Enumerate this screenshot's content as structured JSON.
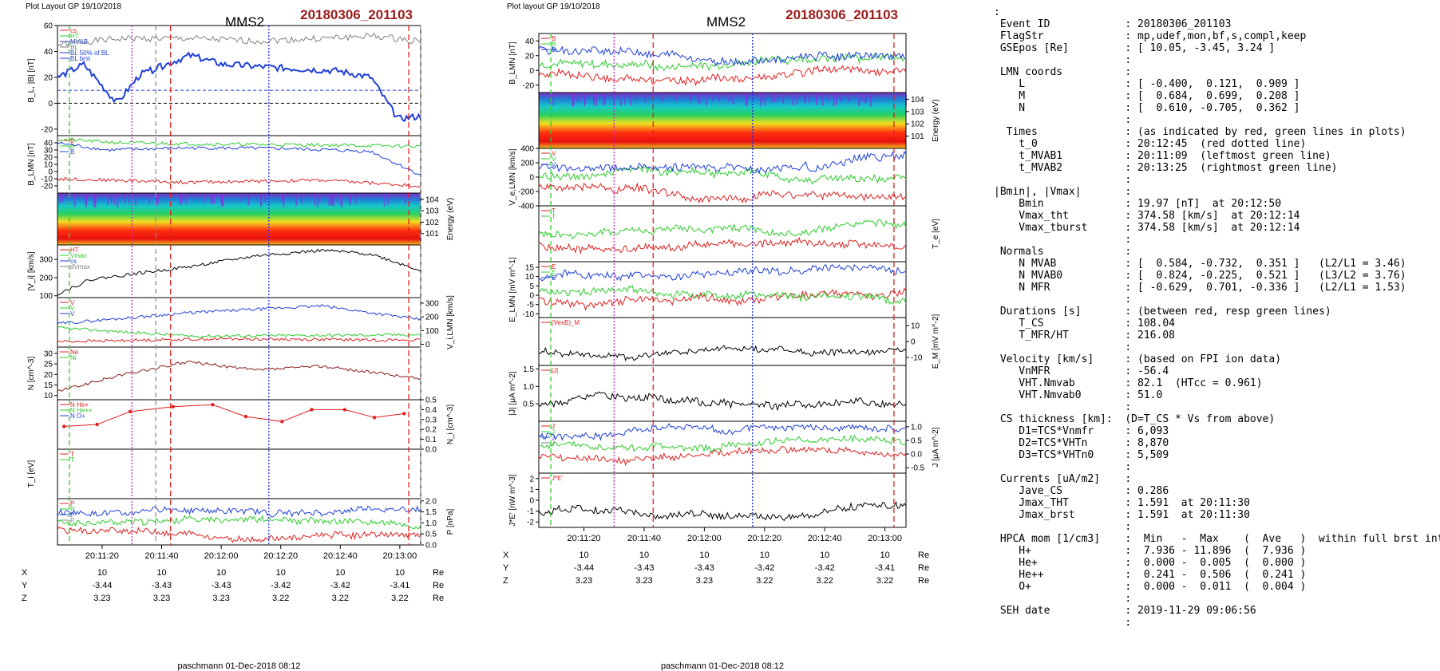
{
  "left_figure": {
    "header": "Plot Layout GP 19/10/2018",
    "spacecraft": "MMS2",
    "event": "20180306_201103",
    "footer": "paschmann 01-Dec-2018 08:12",
    "time_ticks": [
      "20:11:20",
      "20:11:40",
      "20:12:00",
      "20:12:20",
      "20:12:40",
      "20:13:00"
    ],
    "position_rows": [
      {
        "name": "X",
        "values": [
          "10",
          "10",
          "10",
          "10",
          "10",
          "10"
        ],
        "unit": "Re"
      },
      {
        "name": "Y",
        "values": [
          "-3.44",
          "-3.43",
          "-3.43",
          "-3.42",
          "-3.42",
          "-3.41"
        ],
        "unit": "Re"
      },
      {
        "name": "Z",
        "values": [
          "3.23",
          "3.23",
          "3.23",
          "3.22",
          "3.22",
          "3.22"
        ],
        "unit": "Re"
      }
    ],
    "markers": {
      "red_dashed": [
        "20:11:43",
        "20:13:03"
      ],
      "magenta_dotted": [
        "20:11:30"
      ],
      "blue_dotted": [
        "20:12:16"
      ],
      "green_dashed": [
        "20:11:09"
      ],
      "gray_dashed": [
        "20:11:38",
        "20:13:07"
      ]
    }
  },
  "right_figure": {
    "header": "Plot layout GP 19/10/2018",
    "spacecraft": "MMS2",
    "event": "20180306_201103",
    "footer": "paschmann 01-Dec-2018 08:12",
    "time_ticks": [
      "20:11:20",
      "20:11:40",
      "20:12:00",
      "20:12:20",
      "20:12:40",
      "20:13:00"
    ],
    "position_rows": [
      {
        "name": "X",
        "values": [
          "10",
          "10",
          "10",
          "10",
          "10",
          "10"
        ],
        "unit": "Re"
      },
      {
        "name": "Y",
        "values": [
          "-3.44",
          "-3.43",
          "-3.43",
          "-3.42",
          "-3.42",
          "-3.41"
        ],
        "unit": "Re"
      },
      {
        "name": "Z",
        "values": [
          "3.23",
          "3.23",
          "3.23",
          "3.22",
          "3.22",
          "3.22"
        ],
        "unit": "Re"
      }
    ],
    "markers": {
      "red_dashed": [
        "20:11:43",
        "20:13:03"
      ],
      "magenta_dotted": [
        "20:11:30"
      ],
      "blue_dotted": [
        "20:12:16"
      ],
      "green_dashed": [
        "20:11:09"
      ]
    }
  },
  "chart_data": [
    {
      "type": "line",
      "figure": "left",
      "panel": 1,
      "ylabel": "B_L, |B| [nT]",
      "ylim": [
        -25,
        60
      ],
      "y_ticks": [
        "60",
        "40",
        "20",
        "0",
        "-20"
      ],
      "legend": [
        "cs",
        "HT",
        "MVAB",
        "BL",
        "BL 50% of BL",
        "BL brst"
      ],
      "series": [
        {
          "name": "|B|",
          "color": "#808080",
          "approx": [
            [
              0,
              45
            ],
            [
              10,
              48
            ],
            [
              20,
              50
            ],
            [
              40,
              50
            ],
            [
              60,
              48
            ],
            [
              80,
              50
            ],
            [
              95,
              52
            ],
            [
              110,
              48
            ]
          ]
        },
        {
          "name": "BL",
          "color": "#1f3fd8",
          "approx": [
            [
              0,
              20
            ],
            [
              8,
              30
            ],
            [
              18,
              0
            ],
            [
              25,
              22
            ],
            [
              40,
              37
            ],
            [
              50,
              30
            ],
            [
              70,
              27
            ],
            [
              85,
              25
            ],
            [
              95,
              20
            ],
            [
              103,
              -12
            ],
            [
              110,
              -10
            ]
          ]
        }
      ],
      "ref_lines": [
        {
          "y": 10,
          "color": "#1f3fd8"
        },
        {
          "y": 0,
          "color": "#000"
        }
      ]
    },
    {
      "type": "line",
      "figure": "left",
      "panel": 2,
      "ylabel": "B_LMN [nT]",
      "ylim": [
        -30,
        50
      ],
      "y_ticks": [
        "40",
        "30",
        "20",
        "10",
        "0",
        "-10",
        "-20"
      ],
      "legend": [
        "B",
        "B",
        "B"
      ],
      "series": [
        {
          "name": "L",
          "color": "#1f3fd8",
          "approx": [
            [
              0,
              40
            ],
            [
              15,
              30
            ],
            [
              40,
              33
            ],
            [
              70,
              32
            ],
            [
              95,
              28
            ],
            [
              110,
              -5
            ]
          ]
        },
        {
          "name": "M",
          "color": "#2ecc2e",
          "approx": [
            [
              0,
              45
            ],
            [
              20,
              40
            ],
            [
              50,
              38
            ],
            [
              80,
              37
            ],
            [
              110,
              35
            ]
          ]
        },
        {
          "name": "N",
          "color": "#e02020",
          "approx": [
            [
              0,
              -10
            ],
            [
              40,
              -15
            ],
            [
              80,
              -12
            ],
            [
              110,
              -20
            ]
          ]
        }
      ]
    },
    {
      "type": "heatmap",
      "figure": "left",
      "panel": 3,
      "ylabel": "Energy (eV)",
      "y_ticks": [
        "10^4",
        "10^3",
        "10^2",
        "10^1"
      ]
    },
    {
      "type": "line",
      "figure": "left",
      "panel": 4,
      "ylabel": "|V_i| [km/s]",
      "ylim": [
        90,
        380
      ],
      "y_ticks": [
        "300",
        "200",
        "100"
      ],
      "legend": [
        "HT",
        "Vmax",
        "cs",
        "dVmax"
      ],
      "series": [
        {
          "name": "|Vi|",
          "color": "#000",
          "approx": [
            [
              0,
              110
            ],
            [
              10,
              190
            ],
            [
              40,
              260
            ],
            [
              60,
              320
            ],
            [
              80,
              350
            ],
            [
              95,
              330
            ],
            [
              110,
              240
            ]
          ]
        }
      ]
    },
    {
      "type": "line",
      "figure": "left",
      "panel": 5,
      "ylabel": "V_i,LMN [km/s]",
      "ylim": [
        -20,
        340
      ],
      "y_ticks": [
        "300",
        "200",
        "100",
        "0"
      ],
      "legend": [
        "V",
        "V",
        "V"
      ],
      "series": [
        {
          "name": "L",
          "color": "#1f3fd8",
          "approx": [
            [
              0,
              150
            ],
            [
              40,
              230
            ],
            [
              80,
              280
            ],
            [
              110,
              180
            ]
          ]
        },
        {
          "name": "M",
          "color": "#2ecc2e",
          "approx": [
            [
              0,
              120
            ],
            [
              40,
              60
            ],
            [
              110,
              70
            ]
          ]
        },
        {
          "name": "N",
          "color": "#e02020",
          "approx": [
            [
              0,
              20
            ],
            [
              50,
              40
            ],
            [
              110,
              30
            ]
          ]
        }
      ]
    },
    {
      "type": "line",
      "figure": "left",
      "panel": 6,
      "ylabel": "N [cm^-3]",
      "ylim": [
        8,
        33
      ],
      "y_ticks": [
        "30",
        "25",
        "20",
        "15",
        "10"
      ],
      "legend": [
        "Ne",
        "Ni"
      ],
      "series": [
        {
          "name": "Ne",
          "color": "#8b1c1c",
          "approx": [
            [
              0,
              12
            ],
            [
              20,
              20
            ],
            [
              40,
              26
            ],
            [
              60,
              22
            ],
            [
              80,
              24
            ],
            [
              110,
              18
            ]
          ]
        }
      ]
    },
    {
      "type": "line",
      "figure": "left",
      "panel": 7,
      "ylabel": "N_i [cm^-3]",
      "ylim": [
        0,
        0.5
      ],
      "y_ticks": [
        "0.5",
        "0.4",
        "0.3",
        "0.2",
        "0.1",
        "0.0"
      ],
      "legend": [
        "N He+",
        "N He++",
        "N O+"
      ],
      "series": [
        {
          "name": "He++",
          "color": "#e02020",
          "points": [
            [
              2,
              0.23
            ],
            [
              12,
              0.25
            ],
            [
              22,
              0.38
            ],
            [
              35,
              0.43
            ],
            [
              47,
              0.45
            ],
            [
              57,
              0.33
            ],
            [
              68,
              0.28
            ],
            [
              77,
              0.4
            ],
            [
              87,
              0.4
            ],
            [
              96,
              0.32
            ],
            [
              105,
              0.36
            ]
          ]
        }
      ]
    },
    {
      "type": "line",
      "figure": "left",
      "panel": 8,
      "ylabel": "T_i [eV]",
      "legend": [
        "T",
        "T"
      ],
      "series": [
        {
          "name": "T_par",
          "color": "#e02020"
        },
        {
          "name": "T_perp",
          "color": "#000"
        }
      ]
    },
    {
      "type": "line",
      "figure": "left",
      "panel": 9,
      "ylabel": "P [nPa]",
      "ylim": [
        0,
        2.1
      ],
      "y_ticks": [
        "2.0",
        "1.5",
        "1.0",
        "0.5",
        "0.0"
      ],
      "legend": [
        "P",
        "P",
        "P",
        "P"
      ]
    },
    {
      "type": "line",
      "figure": "right",
      "panel": 1,
      "ylabel": "B_LMN [nT]",
      "ylim": [
        -30,
        50
      ],
      "y_ticks": [
        "40",
        "20",
        "0",
        "-20"
      ],
      "legend": [
        "B",
        "B",
        "B"
      ]
    },
    {
      "type": "heatmap",
      "figure": "right",
      "panel": 2,
      "ylabel": "Energy (eV)",
      "y_ticks": [
        "10^4",
        "10^3",
        "10^2",
        "10^1"
      ]
    },
    {
      "type": "line",
      "figure": "right",
      "panel": 3,
      "ylabel": "V_e,LMN [km/s]",
      "ylim": [
        -400,
        400
      ],
      "y_ticks": [
        "400",
        "200",
        "0",
        "-200",
        "-400"
      ],
      "legend": [
        "V",
        "V",
        "V"
      ]
    },
    {
      "type": "line",
      "figure": "right",
      "panel": 4,
      "ylabel": "T_e [eV]",
      "legend": [
        "T",
        "T"
      ]
    },
    {
      "type": "line",
      "figure": "right",
      "panel": 5,
      "ylabel": "E_LMN [mV m^-1]",
      "ylim": [
        -12,
        18
      ],
      "y_ticks": [
        "15",
        "10",
        "5",
        "0",
        "-5",
        "-10"
      ],
      "legend": [
        "E",
        "E",
        "E"
      ]
    },
    {
      "type": "line",
      "figure": "right",
      "panel": 6,
      "ylabel": "E_M [mV m^-2]",
      "ylim": [
        -15,
        15
      ],
      "y_ticks": [
        "10",
        "0",
        "-10"
      ],
      "legend": [
        "(VexB)_M"
      ]
    },
    {
      "type": "line",
      "figure": "right",
      "panel": 7,
      "ylabel": "|J| [μA m^-2]",
      "ylim": [
        0,
        1.6
      ],
      "y_ticks": [
        "1.5",
        "1.0",
        "0.5"
      ],
      "legend": [
        "|J|"
      ]
    },
    {
      "type": "line",
      "figure": "right",
      "panel": 8,
      "ylabel": "J [μA m^-2]",
      "ylim": [
        -0.7,
        1.2
      ],
      "y_ticks": [
        "1.0",
        "0.5",
        "0.0",
        "-0.5"
      ],
      "legend": [
        "J",
        "J",
        "J",
        "J"
      ]
    },
    {
      "type": "line",
      "figure": "right",
      "panel": 9,
      "ylabel": "J*E' [nW m^-3]",
      "ylim": [
        -2.5,
        2.5
      ],
      "y_ticks": [
        "2",
        "1",
        "0",
        "-1",
        "-2"
      ],
      "legend": [
        "J*E'"
      ]
    }
  ],
  "summary_lines": [
    ":",
    " Event ID            : 20180306_201103",
    " FlagStr             : mp,udef,mon,bf,s,compl,keep",
    " GSEpos [Re]         : [ 10.05, -3.45, 3.24 ]",
    "                     :",
    " LMN coords          :",
    "    L                : [ -0.400,  0.121,  0.909 ]",
    "    M                : [  0.684,  0.699,  0.208 ]",
    "    N                : [  0.610, -0.705,  0.362 ]",
    "                     :",
    "  Times              : (as indicated by red, green lines in plots)",
    "    t_0              : 20:12:45  (red dotted line)",
    "    t_MVAB1          : 20:11:09  (leftmost green line)",
    "    t_MVAB2          : 20:13:25  (rightmost green line)",
    "                     :",
    "|Bmin|, |Vmax|       :",
    "    Bmin             : 19.97 [nT]  at 20:12:50",
    "    Vmax_tht         : 374.58 [km/s]  at 20:12:14",
    "    Vmax_tburst      : 374.58 [km/s]  at 20:12:14",
    "                     :",
    " Normals             :",
    "    N MVAB           : [  0.584, -0.732,  0.351 ]   (L2/L1 = 3.46)",
    "    N MVAB0          : [  0.824, -0.225,  0.521 ]   (L3/L2 = 3.76)",
    "    N MFR            : [ -0.629,  0.701, -0.336 ]   (L2/L1 = 1.53)",
    "                     :",
    " Durations [s]       : (between red, resp green lines)",
    "    T_CS             : 108.04",
    "    T_MFR/HT         : 216.08",
    "                     :",
    " Velocity [km/s]     : (based on FPI ion data)",
    "    VnMFR            : -56.4",
    "    VHT.Nmvab        : 82.1  (HTcc = 0.961)",
    "    VHT.Nmvab0       : 51.0",
    "                     :",
    " CS thickness [km]:  (D=T_CS * Vs from above)",
    "    D1=TCS*Vnmfr     : 6,093",
    "    D2=TCS*VHTn      : 8,870",
    "    D3=TCS*VHTn0     : 5,509",
    "                     :",
    " Currents [uA/m2]    :",
    "    Jave_CS          : 0.286",
    "    Jmax_THT         : 1.591  at 20:11:30",
    "    Jmax_brst        : 1.591  at 20:11:30",
    "                     :",
    " HPCA mom [1/cm3]    :  Min   -  Max    (  Ave   )  within full brst int",
    "    H+               :  7.936 - 11.896  (  7.936 )",
    "    He+              :  0.000 -  0.005  (  0.000 )",
    "    He++             :  0.241 -  0.506  (  0.241 )",
    "    O+               :  0.000 -  0.011  (  0.004 )",
    "                     :",
    " SEH date            : 2019-11-29 09:06:56",
    "                     :"
  ]
}
